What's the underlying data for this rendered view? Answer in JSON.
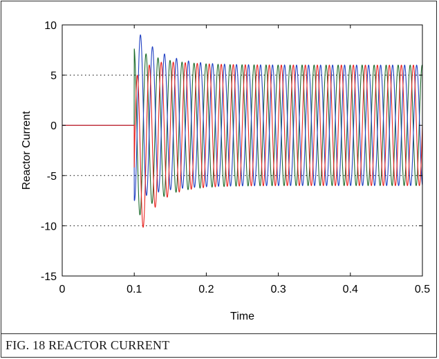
{
  "caption": "FIG. 18  REACTOR CURRENT",
  "chart_data": {
    "type": "line",
    "title": "",
    "xlabel": "Time",
    "ylabel": "Reactor Current",
    "xlim": [
      0,
      0.5
    ],
    "ylim": [
      -15,
      10
    ],
    "xticks": [
      "0",
      "0.1",
      "0.2",
      "0.3",
      "0.4",
      "0.5"
    ],
    "yticks": [
      "10",
      "5",
      "0",
      "-5",
      "-10",
      "-15"
    ],
    "grid": "dotted horizontal at y = 5, -5, -10",
    "colors": {
      "phase_a": "#e8201c",
      "phase_b": "#1f3fc2",
      "phase_c": "#1a6b2a"
    },
    "series": [
      {
        "color": "#e8201c",
        "before_t": 0.1,
        "value_before": 0,
        "steady_amplitude": 6.0,
        "peak_values": [
          -11.2,
          6.3
        ]
      },
      {
        "color": "#1f3fc2",
        "before_t": 0.1,
        "value_before": 0,
        "steady_amplitude": 6.0,
        "peak_values": [
          8.4,
          -8.0
        ]
      },
      {
        "color": "#1a6b2a",
        "before_t": 0.1,
        "value_before": 0,
        "steady_amplitude": 6.0,
        "peak_values": [
          8.0,
          -9.0
        ]
      }
    ]
  }
}
